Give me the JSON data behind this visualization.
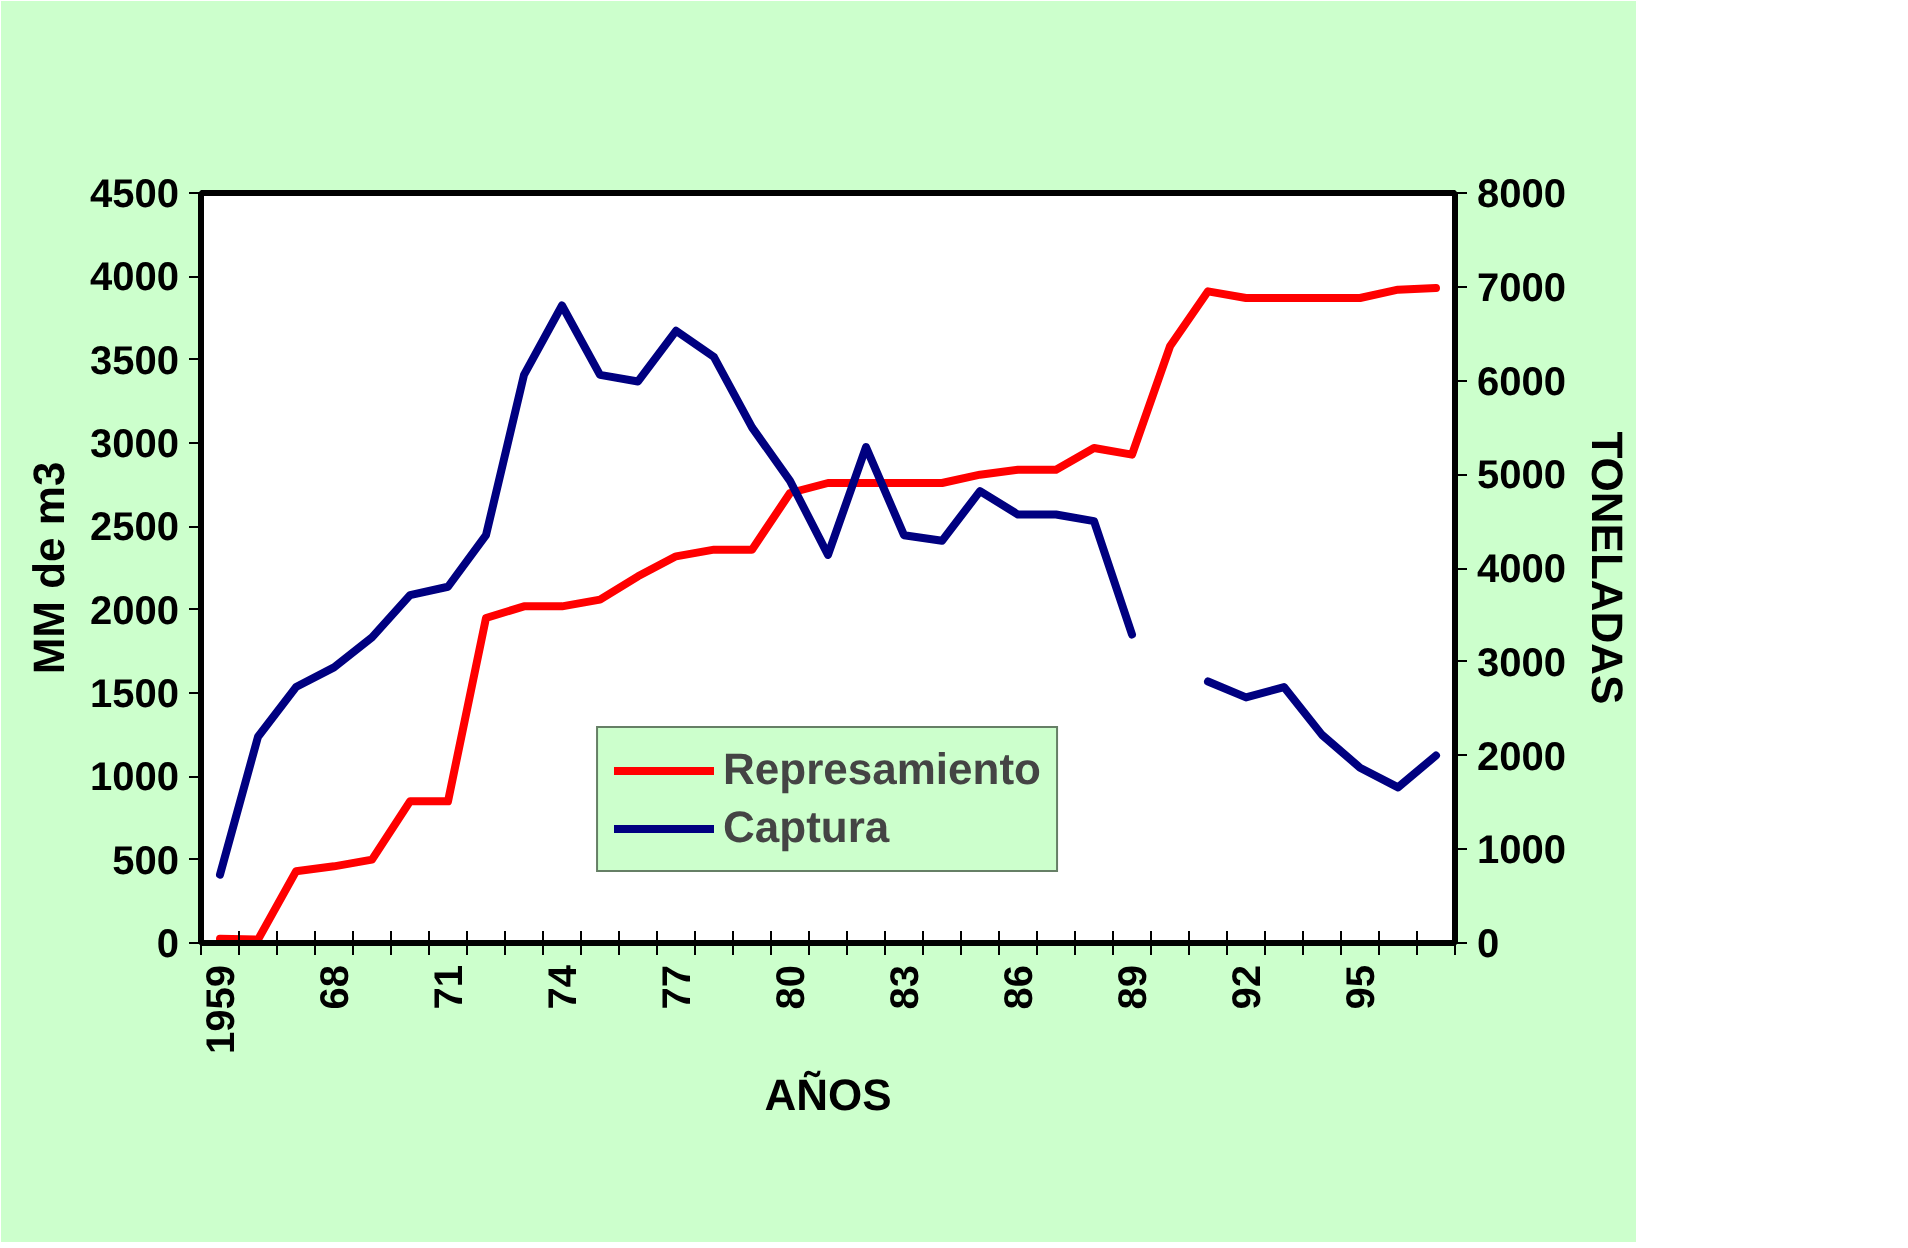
{
  "chart_data": {
    "type": "line",
    "xlabel": "AÑOS",
    "ylabel": "MM de m3",
    "y2label": "TONELADAS",
    "categories": [
      "1959",
      null,
      null,
      "68",
      null,
      null,
      "71",
      null,
      null,
      "74",
      null,
      null,
      "77",
      null,
      null,
      "80",
      null,
      null,
      "83",
      null,
      null,
      "86",
      null,
      null,
      "89",
      null,
      null,
      "92",
      null,
      null,
      "95",
      null,
      null
    ],
    "ylim": [
      0,
      4500
    ],
    "yticks": [
      0,
      500,
      1000,
      1500,
      2000,
      2500,
      3000,
      3500,
      4000,
      4500
    ],
    "y2lim": [
      0,
      8000
    ],
    "y2ticks": [
      0,
      1000,
      2000,
      3000,
      4000,
      5000,
      6000,
      7000,
      8000
    ],
    "series": [
      {
        "name": "Represamiento",
        "color": "#ff0000",
        "values": [
          25,
          20,
          430,
          460,
          500,
          850,
          850,
          1950,
          2020,
          2020,
          2060,
          2200,
          2320,
          2360,
          2360,
          2700,
          2760,
          2760,
          2760,
          2760,
          2810,
          2840,
          2840,
          2970,
          2930,
          3580,
          3910,
          3870,
          3870,
          3870,
          3870,
          3920,
          3930
        ]
      },
      {
        "name": "Captura",
        "color": "#000080",
        "axis": "y2",
        "values": [
          730,
          2200,
          2730,
          2940,
          3260,
          3710,
          3800,
          4350,
          6060,
          6800,
          6060,
          5990,
          6530,
          6250,
          5500,
          4930,
          4140,
          5290,
          4350,
          4290,
          4820,
          4570,
          4570,
          4500,
          3290,
          null,
          2790,
          2620,
          2730,
          2220,
          1870,
          1660,
          2000
        ]
      }
    ],
    "legend": "bottom",
    "grid": false
  }
}
